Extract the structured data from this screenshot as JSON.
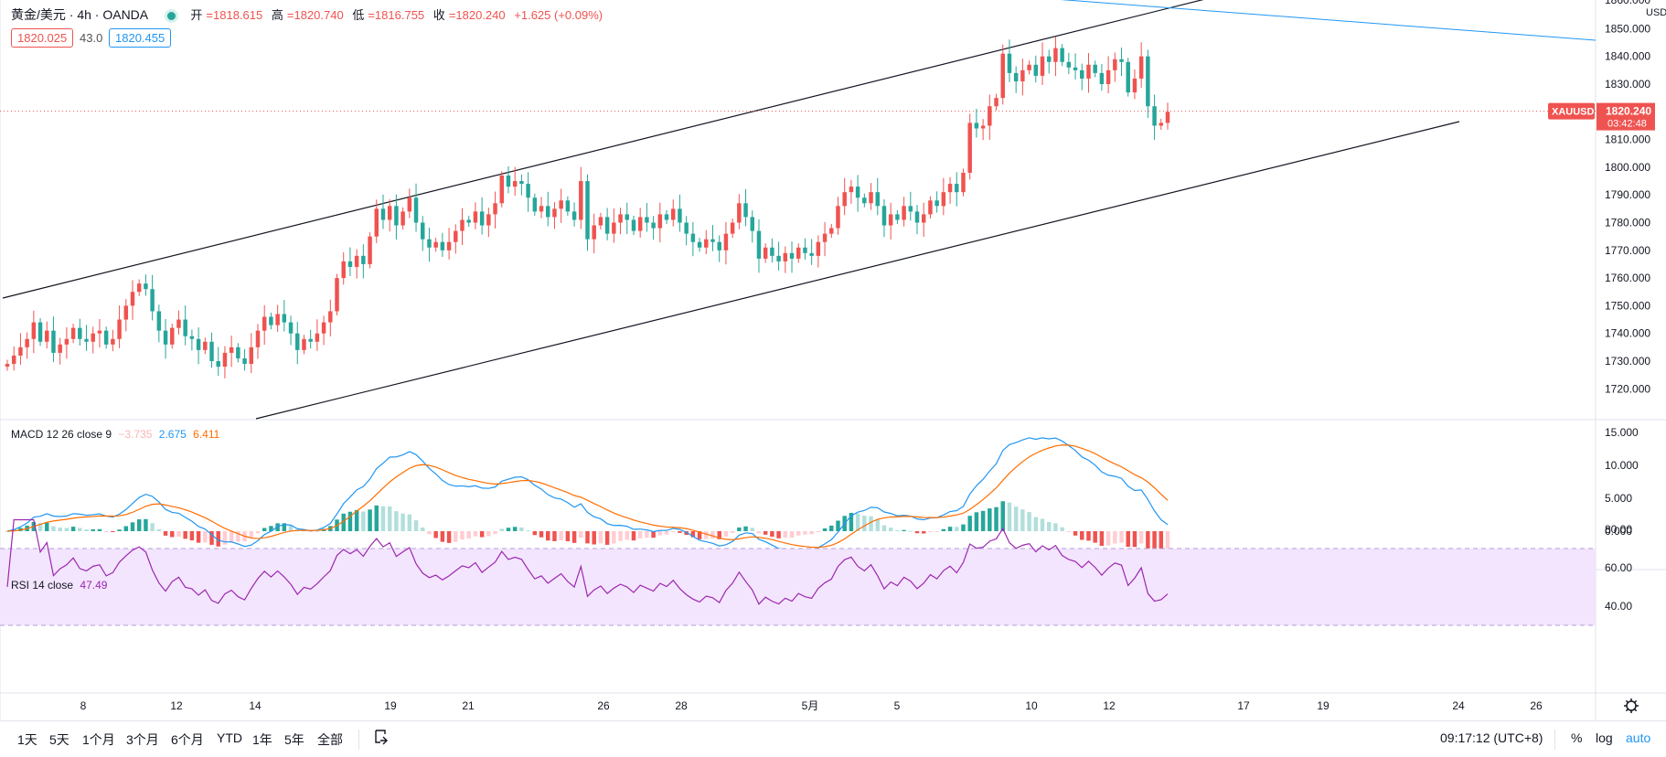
{
  "header": {
    "symbol": "黄金/美元 · 4h · OANDA",
    "ohlc": [
      {
        "label": "开",
        "value": "=1818.615"
      },
      {
        "label": "高",
        "value": "=1820.740"
      },
      {
        "label": "低",
        "value": "=1816.755"
      },
      {
        "label": "收",
        "value": "=1820.240"
      }
    ],
    "change": "+1.625 (+0.09%)",
    "bid": "1820.025",
    "spread": "43.0",
    "ask": "1820.455",
    "colors": {
      "up": "#ef5350",
      "down": "#26a69a",
      "accent": "#2196f3"
    }
  },
  "indicators": {
    "macd": {
      "label": "MACD 12 26 close 9",
      "hist": "−3.735",
      "macd": "2.675",
      "signal": "6.411"
    },
    "rsi": {
      "label": "RSI 14 close",
      "value": "47.49"
    }
  },
  "price_axis": {
    "currency": "USD",
    "ticks": [
      "1850.000",
      "1840.000",
      "1830.000",
      "1810.000",
      "1800.000",
      "1790.000",
      "1780.000",
      "1770.000",
      "1760.000",
      "1750.000",
      "1740.000",
      "1730.000",
      "1720.000"
    ],
    "top_partial": "1860.000",
    "symbol_tag": "XAUUSD",
    "last_price": "1820.240",
    "countdown": "03:42:48"
  },
  "macd_axis": [
    "15.000",
    "10.000",
    "5.000",
    "0.000"
  ],
  "rsi_axis": [
    "80.00",
    "60.00",
    "40.00"
  ],
  "time_axis": [
    "8",
    "12",
    "14",
    "19",
    "21",
    "26",
    "28",
    "5月",
    "5",
    "10",
    "12",
    "17",
    "19",
    "24",
    "26"
  ],
  "bottom_bar": {
    "ranges": [
      "1天",
      "5天",
      "1个月",
      "3个月",
      "6个月",
      "YTD",
      "1年",
      "5年",
      "全部"
    ],
    "clock": "09:17:12 (UTC+8)",
    "percent": "%",
    "log": "log",
    "auto": "auto",
    "compare_icon": "goto-date-icon",
    "settings_icon": "gear-icon"
  },
  "chart_data": [
    {
      "type": "candlestick",
      "symbol": "XAUUSD",
      "timeframe": "4h",
      "ylim": [
        1715,
        1860
      ],
      "closes": [
        1729,
        1732,
        1735,
        1738,
        1744,
        1737,
        1741,
        1733,
        1736,
        1738,
        1742,
        1738,
        1737,
        1740,
        1741,
        1736,
        1738,
        1745,
        1750,
        1755,
        1758,
        1756,
        1748,
        1741,
        1736,
        1742,
        1745,
        1739,
        1738,
        1734,
        1737,
        1730,
        1728,
        1733,
        1735,
        1731,
        1729,
        1735,
        1741,
        1746,
        1743,
        1747,
        1744,
        1740,
        1734,
        1738,
        1737,
        1740,
        1744,
        1748,
        1760,
        1766,
        1764,
        1768,
        1765,
        1775,
        1785,
        1781,
        1786,
        1779,
        1784,
        1789,
        1780,
        1774,
        1771,
        1773,
        1770,
        1773,
        1777,
        1781,
        1780,
        1784,
        1779,
        1783,
        1787,
        1797,
        1793,
        1795,
        1794,
        1789,
        1784,
        1786,
        1782,
        1785,
        1788,
        1784,
        1781,
        1795,
        1774,
        1779,
        1782,
        1776,
        1780,
        1783,
        1781,
        1777,
        1782,
        1780,
        1778,
        1783,
        1781,
        1785,
        1780,
        1776,
        1773,
        1771,
        1774,
        1773,
        1770,
        1776,
        1780,
        1787,
        1782,
        1777,
        1767,
        1771,
        1768,
        1766,
        1769,
        1767,
        1771,
        1769,
        1768,
        1773,
        1776,
        1778,
        1786,
        1791,
        1793,
        1789,
        1787,
        1791,
        1786,
        1779,
        1783,
        1781,
        1786,
        1784,
        1780,
        1783,
        1788,
        1786,
        1791,
        1794,
        1791,
        1798,
        1816,
        1814,
        1815,
        1822,
        1825,
        1841,
        1834,
        1831,
        1835,
        1837,
        1833,
        1840,
        1838,
        1843,
        1838,
        1836,
        1835,
        1832,
        1837,
        1834,
        1830,
        1835,
        1839,
        1838,
        1827,
        1832,
        1840,
        1822,
        1815,
        1816,
        1820
      ],
      "line_type_macd": {
        "series": [
          "MACD",
          "Signal",
          "Histogram"
        ],
        "ylim": [
          -4,
          16
        ]
      },
      "line_type_rsi": {
        "series": [
          "RSI"
        ],
        "ylim": [
          30,
          85
        ],
        "band": [
          30,
          70
        ]
      }
    }
  ]
}
